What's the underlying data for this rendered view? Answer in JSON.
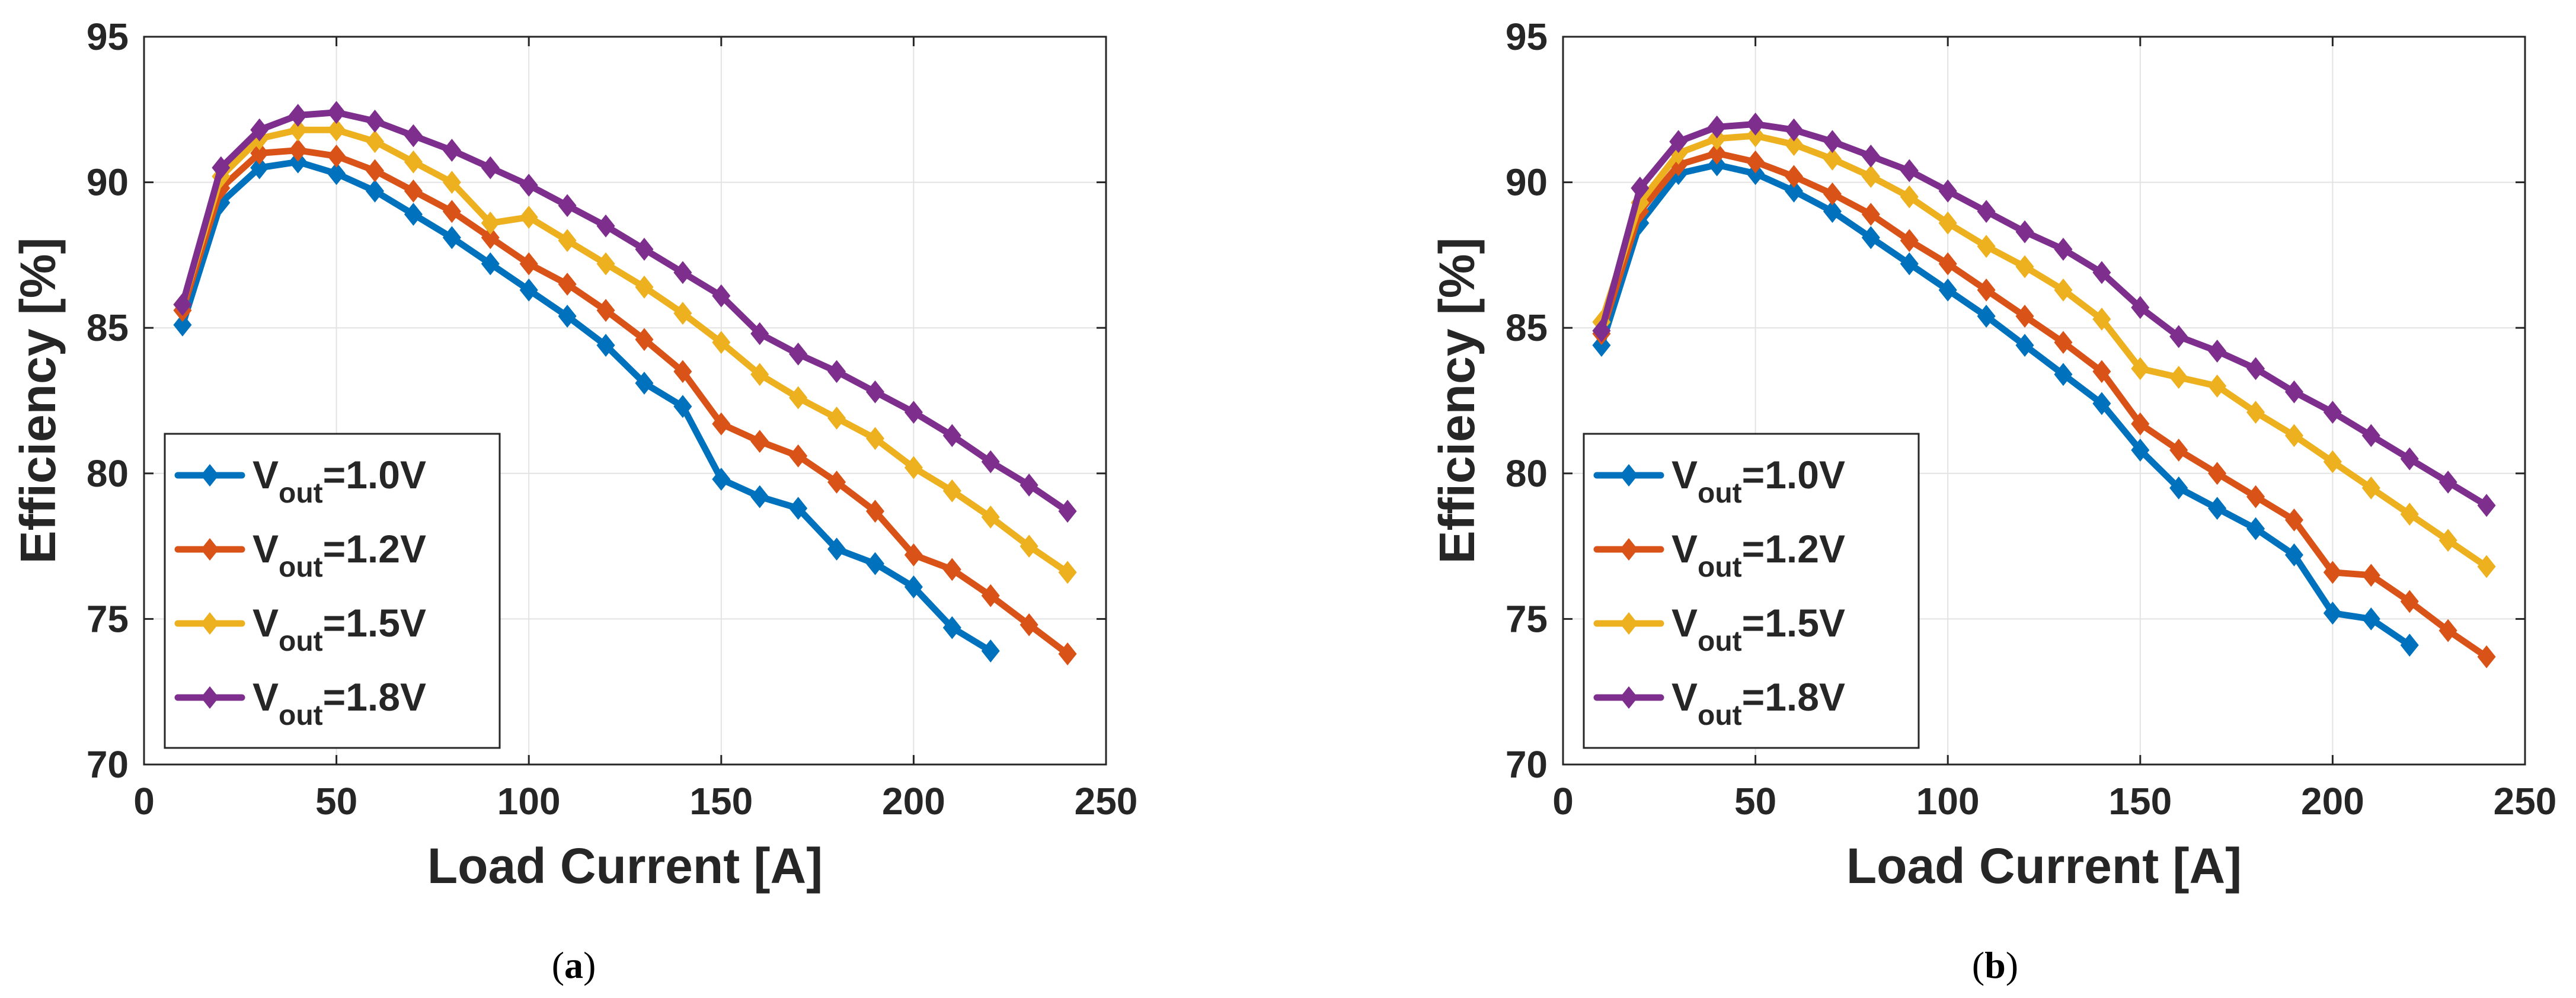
{
  "figure": {
    "panels": [
      {
        "caption_open": "(",
        "caption_letter": "a",
        "caption_close": ")"
      },
      {
        "caption_open": "(",
        "caption_letter": "b",
        "caption_close": ")"
      }
    ]
  },
  "chart_data": [
    {
      "type": "line",
      "title": "",
      "xlabel": "Load Current [A]",
      "ylabel": "Efficiency [%]",
      "xlim": [
        0,
        250
      ],
      "ylim": [
        70,
        95
      ],
      "xticks": [
        0,
        50,
        100,
        150,
        200,
        250
      ],
      "yticks": [
        70,
        75,
        80,
        85,
        90,
        95
      ],
      "grid": true,
      "legend_position": "lower-left",
      "series": [
        {
          "name": "V_out=1.0V",
          "label_main": "V",
          "label_sub": "out",
          "label_rest": "=1.0V",
          "color": "#0072BD",
          "x": [
            10,
            20,
            30,
            40,
            50,
            60,
            70,
            80,
            90,
            100,
            110,
            120,
            130,
            140,
            150,
            160,
            170,
            180,
            190,
            200,
            210,
            220
          ],
          "y": [
            85.1,
            89.3,
            90.5,
            90.7,
            90.3,
            89.7,
            88.9,
            88.1,
            87.2,
            86.3,
            85.4,
            84.4,
            83.1,
            82.3,
            79.8,
            79.2,
            78.8,
            77.4,
            76.9,
            76.1,
            74.7,
            73.9
          ]
        },
        {
          "name": "V_out=1.2V",
          "label_main": "V",
          "label_sub": "out",
          "label_rest": "=1.2V",
          "color": "#D95319",
          "x": [
            10,
            20,
            30,
            40,
            50,
            60,
            70,
            80,
            90,
            100,
            110,
            120,
            130,
            140,
            150,
            160,
            170,
            180,
            190,
            200,
            210,
            220,
            230,
            240
          ],
          "y": [
            85.6,
            89.8,
            91.0,
            91.1,
            90.9,
            90.4,
            89.7,
            89.0,
            88.1,
            87.2,
            86.5,
            85.6,
            84.6,
            83.5,
            81.7,
            81.1,
            80.6,
            79.7,
            78.7,
            77.2,
            76.7,
            75.8,
            74.8,
            73.8
          ]
        },
        {
          "name": "V_out=1.5V",
          "label_main": "V",
          "label_sub": "out",
          "label_rest": "=1.5V",
          "color": "#EDB120",
          "x": [
            10,
            20,
            30,
            40,
            50,
            60,
            70,
            80,
            90,
            100,
            110,
            120,
            130,
            140,
            150,
            160,
            170,
            180,
            190,
            200,
            210,
            220,
            230,
            240
          ],
          "y": [
            85.8,
            90.2,
            91.5,
            91.8,
            91.8,
            91.4,
            90.7,
            90.0,
            88.6,
            88.8,
            88.0,
            87.2,
            86.4,
            85.5,
            84.5,
            83.4,
            82.6,
            81.9,
            81.2,
            80.2,
            79.4,
            78.5,
            77.5,
            76.6
          ]
        },
        {
          "name": "V_out=1.8V",
          "label_main": "V",
          "label_sub": "out",
          "label_rest": "=1.8V",
          "color": "#7E2F8E",
          "x": [
            10,
            20,
            30,
            40,
            50,
            60,
            70,
            80,
            90,
            100,
            110,
            120,
            130,
            140,
            150,
            160,
            170,
            180,
            190,
            200,
            210,
            220,
            230,
            240
          ],
          "y": [
            85.8,
            90.5,
            91.8,
            92.3,
            92.4,
            92.1,
            91.6,
            91.1,
            90.5,
            89.9,
            89.2,
            88.5,
            87.7,
            86.9,
            86.1,
            84.8,
            84.1,
            83.5,
            82.8,
            82.1,
            81.3,
            80.4,
            79.6,
            78.7
          ]
        }
      ]
    },
    {
      "type": "line",
      "title": "",
      "xlabel": "Load Current [A]",
      "ylabel": "Efficiency [%]",
      "xlim": [
        0,
        250
      ],
      "ylim": [
        70,
        95
      ],
      "xticks": [
        0,
        50,
        100,
        150,
        200,
        250
      ],
      "yticks": [
        70,
        75,
        80,
        85,
        90,
        95
      ],
      "grid": true,
      "legend_position": "lower-left",
      "series": [
        {
          "name": "V_out=1.0V",
          "label_main": "V",
          "label_sub": "out",
          "label_rest": "=1.0V",
          "color": "#0072BD",
          "x": [
            10,
            20,
            30,
            40,
            50,
            60,
            70,
            80,
            90,
            100,
            110,
            120,
            130,
            140,
            150,
            160,
            170,
            180,
            190,
            200,
            210,
            220
          ],
          "y": [
            84.4,
            88.6,
            90.3,
            90.6,
            90.3,
            89.7,
            89.0,
            88.1,
            87.2,
            86.3,
            85.4,
            84.4,
            83.4,
            82.4,
            80.8,
            79.5,
            78.8,
            78.1,
            77.2,
            75.2,
            75.0,
            74.1
          ]
        },
        {
          "name": "V_out=1.2V",
          "label_main": "V",
          "label_sub": "out",
          "label_rest": "=1.2V",
          "color": "#D95319",
          "x": [
            10,
            20,
            30,
            40,
            50,
            60,
            70,
            80,
            90,
            100,
            110,
            120,
            130,
            140,
            150,
            160,
            170,
            180,
            190,
            200,
            210,
            220,
            230,
            240
          ],
          "y": [
            84.8,
            89.0,
            90.6,
            91.0,
            90.7,
            90.2,
            89.6,
            88.9,
            88.0,
            87.2,
            86.3,
            85.4,
            84.5,
            83.5,
            81.7,
            80.8,
            80.0,
            79.2,
            78.4,
            76.6,
            76.5,
            75.6,
            74.6,
            73.7
          ]
        },
        {
          "name": "V_out=1.5V",
          "label_main": "V",
          "label_sub": "out",
          "label_rest": "=1.5V",
          "color": "#EDB120",
          "x": [
            10,
            20,
            30,
            40,
            50,
            60,
            70,
            80,
            90,
            100,
            110,
            120,
            130,
            140,
            150,
            160,
            170,
            180,
            190,
            200,
            210,
            220,
            230,
            240
          ],
          "y": [
            85.2,
            89.3,
            91.0,
            91.5,
            91.6,
            91.3,
            90.8,
            90.2,
            89.5,
            88.6,
            87.8,
            87.1,
            86.3,
            85.3,
            83.6,
            83.3,
            83.0,
            82.1,
            81.3,
            80.4,
            79.5,
            78.6,
            77.7,
            76.8
          ]
        },
        {
          "name": "V_out=1.8V",
          "label_main": "V",
          "label_sub": "out",
          "label_rest": "=1.8V",
          "color": "#7E2F8E",
          "x": [
            10,
            20,
            30,
            40,
            50,
            60,
            70,
            80,
            90,
            100,
            110,
            120,
            130,
            140,
            150,
            160,
            170,
            180,
            190,
            200,
            210,
            220,
            230,
            240
          ],
          "y": [
            84.9,
            89.8,
            91.4,
            91.9,
            92.0,
            91.8,
            91.4,
            90.9,
            90.4,
            89.7,
            89.0,
            88.3,
            87.7,
            86.9,
            85.7,
            84.7,
            84.2,
            83.6,
            82.8,
            82.1,
            81.3,
            80.5,
            79.7,
            78.9
          ]
        }
      ]
    }
  ]
}
